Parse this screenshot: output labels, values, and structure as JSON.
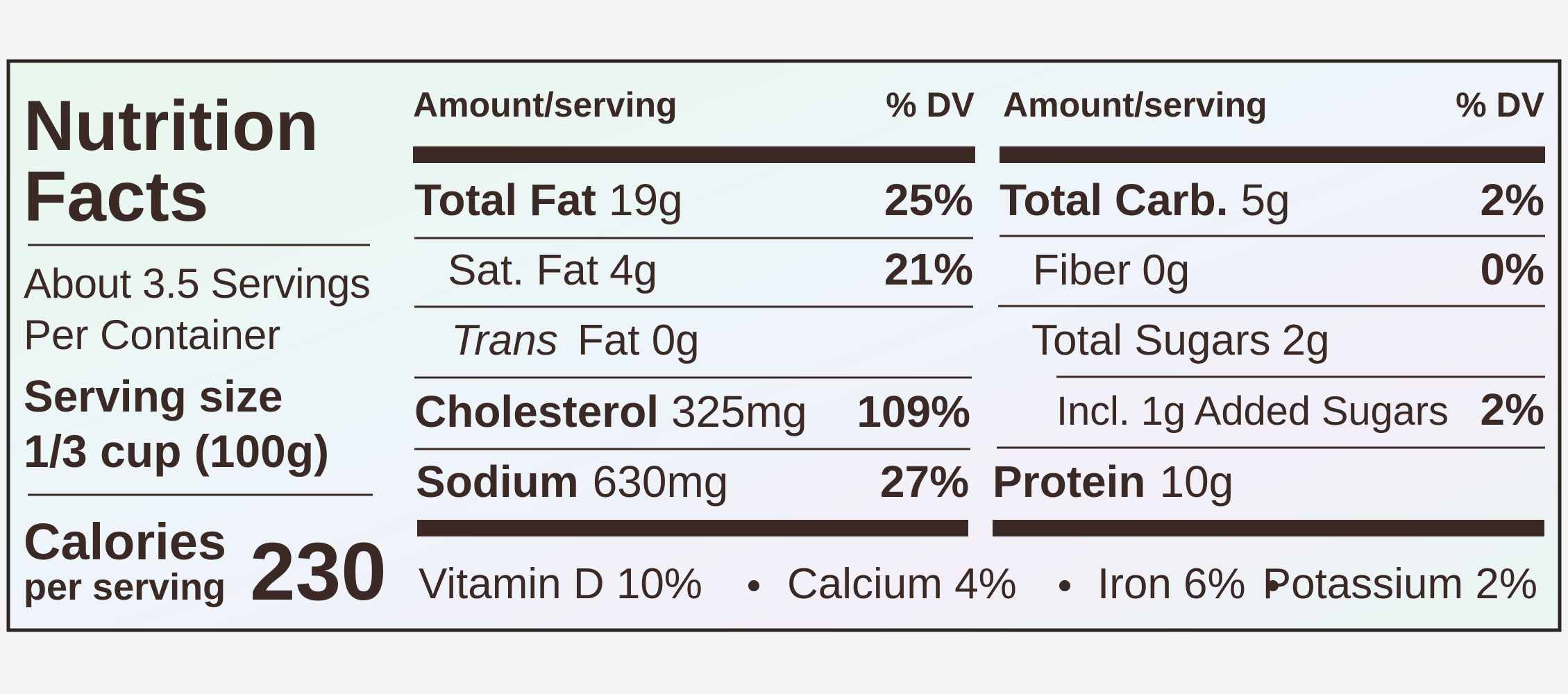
{
  "header": {
    "title_line1": "Nutrition",
    "title_line2": "Facts"
  },
  "servings": {
    "line1": "About 3.5 Servings",
    "line2": "Per Container"
  },
  "serving_size": {
    "label": "Serving size",
    "value": "1/3 cup (100g)"
  },
  "calories": {
    "label": "Calories",
    "sublabel": "per serving",
    "value": "230"
  },
  "left_column": {
    "headers": [
      "Amount/serving",
      "% DV"
    ],
    "rows": [
      {
        "name": "Total Fat",
        "amount": "19g",
        "dv": "25%"
      },
      {
        "name": "Sat. Fat",
        "amount": "4g",
        "dv": "21%"
      },
      {
        "name": "Trans",
        "amount": "Fat 0g"
      },
      {
        "name": "Cholesterol",
        "amount": "325mg",
        "dv": "109%"
      },
      {
        "name": "Sodium",
        "amount": "630mg",
        "dv": "27%"
      }
    ]
  },
  "right_column": {
    "headers": [
      "Amount/serving",
      "% DV"
    ],
    "rows": [
      {
        "name": "Total Carb.",
        "amount": "5g",
        "dv": "2%"
      },
      {
        "name": "Fiber",
        "amount": "0g",
        "dv": "0%"
      },
      {
        "name": "Total Sugars",
        "amount": "2g"
      },
      {
        "name": "Incl. 1g Added Sugars",
        "dv": "2%"
      },
      {
        "name": "Protein",
        "amount": "10g"
      }
    ]
  },
  "footer": {
    "items": [
      "Vitamin D 10%",
      "Calcium 4%",
      "Iron 6%",
      "Potassium 2%"
    ]
  }
}
